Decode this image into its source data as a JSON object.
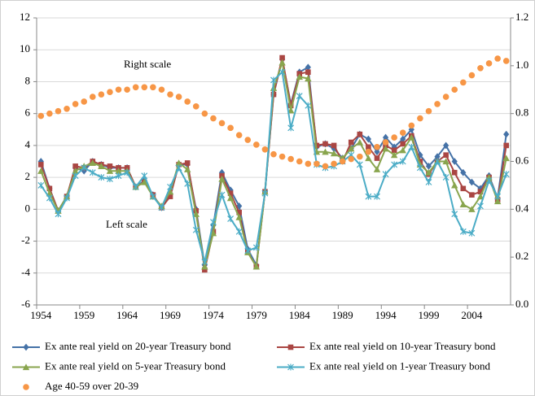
{
  "chart_data": {
    "type": "line",
    "annotations": [
      "Right scale",
      "Left scale"
    ],
    "categories": [
      "1954",
      null,
      null,
      null,
      null,
      "1959",
      null,
      null,
      null,
      null,
      "1964",
      null,
      null,
      null,
      null,
      "1969",
      null,
      null,
      null,
      null,
      "1974",
      null,
      null,
      null,
      null,
      "1979",
      null,
      null,
      null,
      null,
      "1984",
      null,
      null,
      null,
      null,
      "1989",
      null,
      null,
      null,
      null,
      "1994",
      null,
      null,
      null,
      null,
      "1999",
      null,
      null,
      null,
      null,
      "2004",
      null,
      null,
      null,
      null
    ],
    "ylim": [
      -6,
      12
    ],
    "yticks": [
      -6,
      -4,
      -2,
      0,
      2,
      4,
      6,
      8,
      10,
      12
    ],
    "y2lim": [
      0,
      1.2
    ],
    "y2ticks": [
      {
        "value": 0,
        "label": "0.0"
      },
      0.2,
      0.4,
      0.6,
      0.8,
      {
        "value": 1,
        "label": "1.0"
      },
      1.2
    ],
    "grid": true,
    "legend": "bottom",
    "series": [
      {
        "name": "Ex ante real yield on 20-year Treasury bond",
        "color": "#4572a7",
        "marker": "diamond",
        "values": [
          3.0,
          1.3,
          -0.1,
          0.8,
          2.6,
          2.4,
          3.0,
          2.8,
          2.6,
          2.6,
          2.6,
          1.4,
          1.8,
          0.9,
          0.1,
          1.0,
          2.8,
          2.8,
          0.0,
          -3.5,
          -1.0,
          2.3,
          1.2,
          0.2,
          -2.5,
          -3.5,
          1.1,
          7.2,
          9.4,
          6.6,
          8.6,
          8.9,
          3.9,
          4.1,
          3.8,
          3.2,
          3.8,
          4.7,
          4.4,
          3.6,
          4.5,
          3.9,
          4.4,
          5.0,
          3.4,
          2.7,
          3.3,
          4.0,
          3.0,
          2.3,
          1.7,
          1.3,
          2.1,
          0.7,
          4.7
        ]
      },
      {
        "name": "Ex ante real yield on 10-year Treasury bond",
        "color": "#aa4643",
        "marker": "square",
        "values": [
          2.8,
          1.3,
          -0.1,
          0.8,
          2.7,
          2.6,
          3.0,
          2.8,
          2.7,
          2.6,
          2.6,
          1.4,
          1.7,
          0.9,
          0.1,
          0.8,
          2.8,
          2.9,
          -0.1,
          -3.8,
          -1.4,
          2.1,
          1.0,
          -0.2,
          -2.7,
          -3.6,
          1.1,
          7.2,
          9.5,
          6.5,
          8.5,
          8.6,
          4.0,
          4.1,
          4.0,
          3.0,
          4.2,
          4.7,
          3.9,
          3.2,
          4.0,
          3.7,
          4.1,
          4.6,
          3.0,
          2.2,
          3.0,
          3.4,
          2.3,
          1.3,
          0.9,
          1.1,
          2.0,
          0.6,
          4.0
        ]
      },
      {
        "name": "Ex ante real yield on 5-year Treasury bond",
        "color": "#89a54e",
        "marker": "triangle",
        "values": [
          2.4,
          1.0,
          -0.1,
          0.8,
          2.4,
          2.7,
          2.9,
          2.7,
          2.4,
          2.4,
          2.4,
          1.4,
          1.7,
          0.8,
          0.2,
          1.1,
          2.9,
          2.5,
          -0.3,
          -3.6,
          -1.5,
          1.9,
          0.7,
          -0.5,
          -2.7,
          -3.6,
          1.1,
          7.6,
          9.2,
          6.2,
          8.3,
          8.2,
          3.6,
          3.6,
          3.5,
          3.2,
          3.8,
          4.2,
          3.2,
          2.5,
          3.8,
          3.4,
          3.7,
          4.5,
          2.8,
          2.3,
          3.0,
          3.0,
          1.5,
          0.3,
          0.0,
          0.8,
          2.0,
          0.5,
          3.2
        ]
      },
      {
        "name": "Ex ante real yield on 1-year Treasury bond",
        "color": "#4bacc6",
        "marker": "star",
        "values": [
          1.5,
          0.7,
          -0.3,
          0.7,
          2.1,
          2.6,
          2.3,
          2.0,
          1.9,
          2.1,
          2.3,
          1.4,
          2.1,
          0.8,
          0.1,
          1.4,
          2.6,
          1.6,
          -1.3,
          -3.3,
          -0.8,
          0.9,
          -0.6,
          -1.4,
          -2.6,
          -2.4,
          1.0,
          8.1,
          8.6,
          5.1,
          7.1,
          6.5,
          2.8,
          2.6,
          2.7,
          3.0,
          3.4,
          2.8,
          0.8,
          0.8,
          2.2,
          2.8,
          3.0,
          3.9,
          2.6,
          1.7,
          3.0,
          2.0,
          -0.3,
          -1.4,
          -1.5,
          0.2,
          1.8,
          0.8,
          2.2
        ]
      },
      {
        "name": "Age 40-59 over 20-39",
        "color": "#f79646",
        "marker": "circle",
        "axis": "y2",
        "values": [
          0.79,
          0.8,
          0.81,
          0.82,
          0.84,
          0.85,
          0.87,
          0.88,
          0.89,
          0.9,
          0.9,
          0.91,
          0.91,
          0.91,
          0.9,
          0.88,
          0.87,
          0.85,
          0.83,
          0.8,
          0.78,
          0.76,
          0.74,
          0.71,
          0.69,
          0.67,
          0.65,
          0.63,
          0.62,
          0.61,
          0.6,
          0.59,
          0.59,
          0.58,
          0.59,
          0.6,
          0.61,
          0.62,
          0.64,
          0.66,
          0.68,
          0.7,
          0.72,
          0.75,
          0.78,
          0.81,
          0.84,
          0.87,
          0.9,
          0.93,
          0.96,
          0.99,
          1.01,
          1.03,
          1.02
        ]
      }
    ]
  }
}
